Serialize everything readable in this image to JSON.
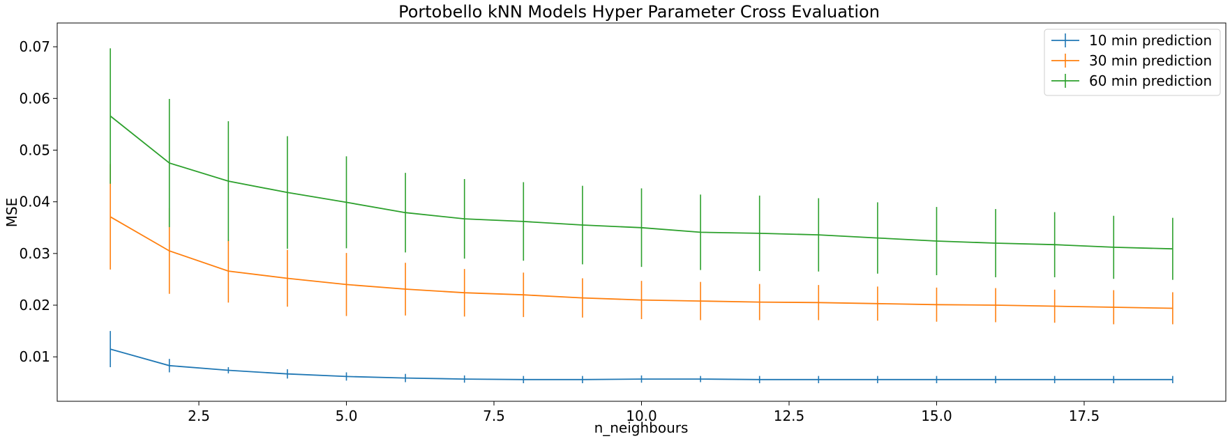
{
  "chart_data": {
    "type": "line",
    "title": "Portobello kNN Models Hyper Parameter Cross Evaluation",
    "xlabel": "n_neighbours",
    "ylabel": "MSE",
    "xlim": [
      0.1,
      19.9
    ],
    "ylim": [
      0.0014,
      0.0746
    ],
    "xticks": [
      2.5,
      5.0,
      7.5,
      10.0,
      12.5,
      15.0,
      17.5
    ],
    "xtick_labels": [
      "2.5",
      "5.0",
      "7.5",
      "10.0",
      "12.5",
      "15.0",
      "17.5"
    ],
    "yticks": [
      0.01,
      0.02,
      0.03,
      0.04,
      0.05,
      0.06,
      0.07
    ],
    "ytick_labels": [
      "0.01",
      "0.02",
      "0.03",
      "0.04",
      "0.05",
      "0.06",
      "0.07"
    ],
    "grid": false,
    "legend_position": "top-right",
    "error_bars": true,
    "x": [
      1,
      2,
      3,
      4,
      5,
      6,
      7,
      8,
      9,
      10,
      11,
      12,
      13,
      14,
      15,
      16,
      17,
      18,
      19
    ],
    "series": [
      {
        "name": "10 min prediction",
        "color": "#1f77b4",
        "values": [
          0.0115,
          0.0083,
          0.0074,
          0.0067,
          0.0062,
          0.0059,
          0.0057,
          0.0056,
          0.0056,
          0.0057,
          0.0057,
          0.0056,
          0.0056,
          0.0056,
          0.0056,
          0.0056,
          0.0056,
          0.0056,
          0.0056
        ],
        "errors": [
          0.0035,
          0.0013,
          0.0006,
          0.0009,
          0.0008,
          0.0008,
          0.0007,
          0.0007,
          0.0007,
          0.0007,
          0.0006,
          0.0007,
          0.0007,
          0.0007,
          0.0007,
          0.0007,
          0.0007,
          0.0007,
          0.0007
        ]
      },
      {
        "name": "30 min prediction",
        "color": "#ff7f0e",
        "values": [
          0.0371,
          0.0305,
          0.0266,
          0.0252,
          0.024,
          0.0231,
          0.0224,
          0.022,
          0.0214,
          0.021,
          0.0208,
          0.0206,
          0.0205,
          0.0203,
          0.0201,
          0.02,
          0.0198,
          0.0196,
          0.0194
        ],
        "errors": [
          0.0102,
          0.0083,
          0.0061,
          0.0055,
          0.0061,
          0.0051,
          0.0046,
          0.0043,
          0.0038,
          0.0037,
          0.0037,
          0.0035,
          0.0034,
          0.0033,
          0.0033,
          0.0033,
          0.0032,
          0.0033,
          0.0031
        ]
      },
      {
        "name": "60 min prediction",
        "color": "#2ca02c",
        "values": [
          0.0566,
          0.0475,
          0.044,
          0.0418,
          0.0399,
          0.0379,
          0.0367,
          0.0362,
          0.0355,
          0.035,
          0.0341,
          0.0339,
          0.0336,
          0.033,
          0.0324,
          0.032,
          0.0317,
          0.0312,
          0.0309
        ],
        "errors": [
          0.0131,
          0.0124,
          0.0116,
          0.0109,
          0.0089,
          0.0077,
          0.0077,
          0.0076,
          0.0076,
          0.0076,
          0.0073,
          0.0073,
          0.0071,
          0.0069,
          0.0066,
          0.0066,
          0.0063,
          0.0061,
          0.006
        ]
      }
    ]
  }
}
